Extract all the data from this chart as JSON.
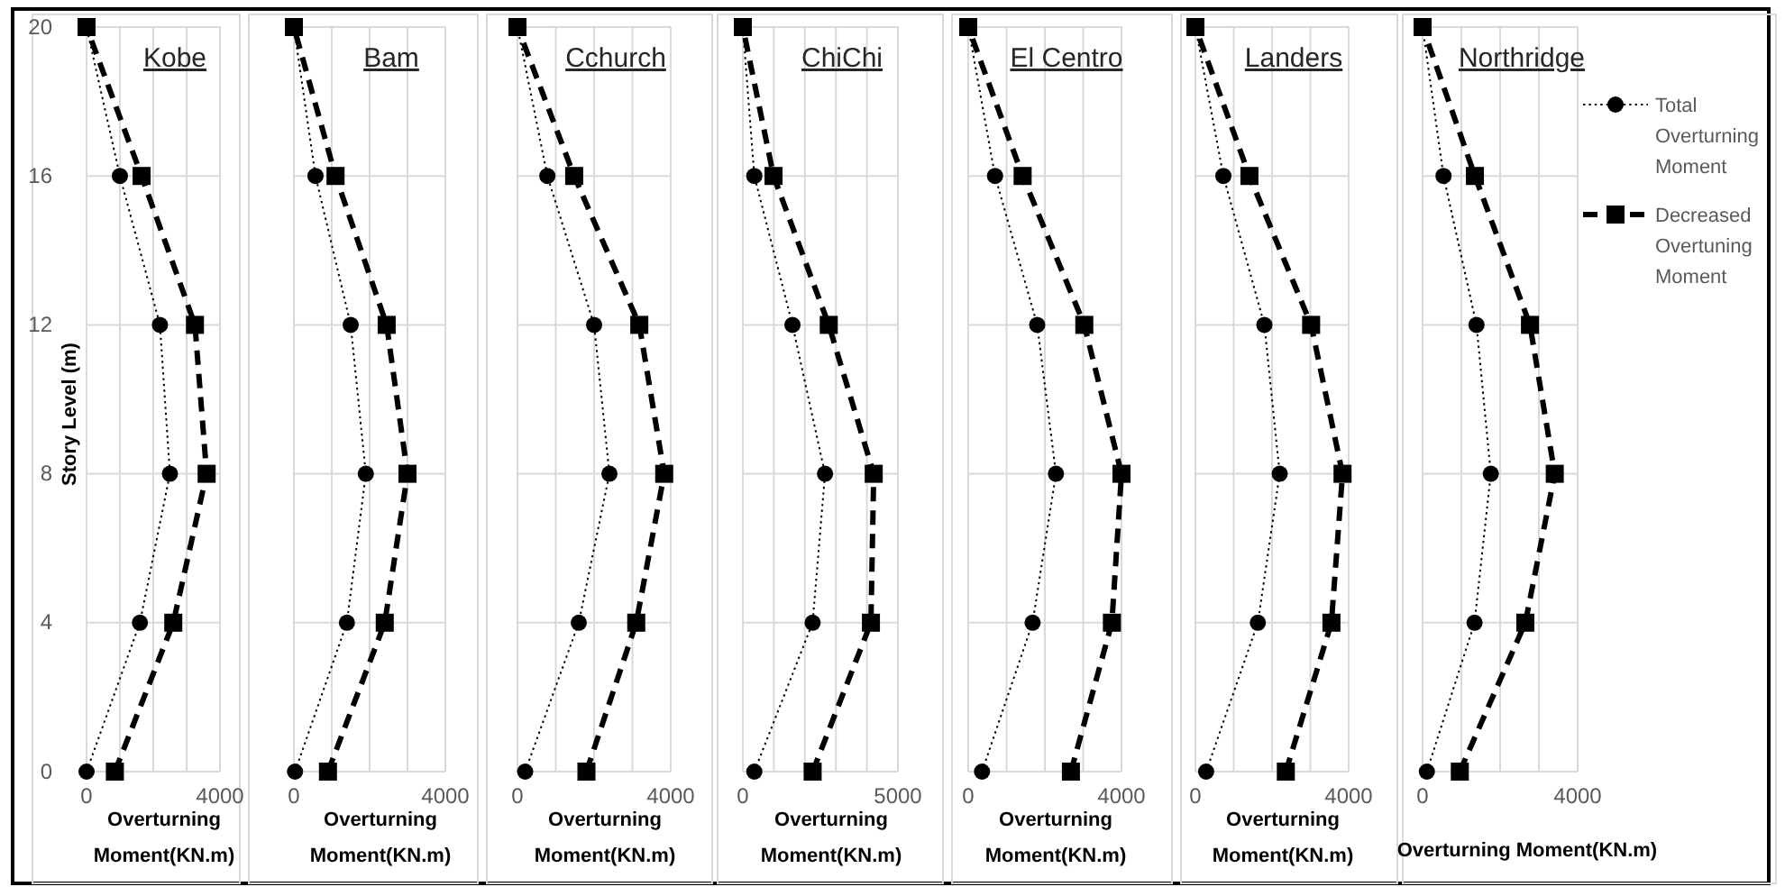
{
  "chart_data": [
    {
      "type": "line",
      "title": "Kobe",
      "xlabel": "Overturning Moment(KN.m)",
      "ylabel": "Story Level (m)",
      "xlim": [
        0,
        4000
      ],
      "xticks": [
        0,
        {
          "value": 1000,
          "label": null
        },
        {
          "value": 2000,
          "label": null
        },
        {
          "value": 3000,
          "label": null
        },
        4000
      ],
      "ylim": [
        0,
        20
      ],
      "yticks": [
        0,
        4,
        8,
        12,
        16,
        20
      ],
      "grid": true,
      "series": [
        {
          "color": "#000000",
          "marker": "circle",
          "line_style": "dotted",
          "x": [
            0,
            1600,
            2500,
            2200,
            1000,
            0
          ],
          "values": [
            0,
            4,
            8,
            12,
            16,
            20
          ]
        },
        {
          "color": "#000000",
          "marker": "square",
          "line_style": "dashed",
          "x": [
            850,
            2600,
            3600,
            3250,
            1650,
            0
          ],
          "values": [
            0,
            4,
            8,
            12,
            16,
            20
          ]
        }
      ]
    },
    {
      "type": "line",
      "title": "Bam",
      "xlabel": "Overturning Moment(KN.m)",
      "tick_labels": "x",
      "xlim": [
        0,
        4000
      ],
      "xticks": [
        0,
        {
          "value": 1000,
          "label": null
        },
        {
          "value": 2000,
          "label": null
        },
        {
          "value": 3000,
          "label": null
        },
        4000
      ],
      "ylim": [
        0,
        20
      ],
      "yticks": [
        0,
        4,
        8,
        12,
        16,
        20
      ],
      "grid": true,
      "series": [
        {
          "color": "#000000",
          "marker": "circle",
          "line_style": "dotted",
          "x": [
            30,
            1400,
            1900,
            1500,
            570,
            0
          ],
          "values": [
            0,
            4,
            8,
            12,
            16,
            20
          ]
        },
        {
          "color": "#000000",
          "marker": "square",
          "line_style": "dashed",
          "x": [
            900,
            2400,
            3000,
            2450,
            1100,
            0
          ],
          "values": [
            0,
            4,
            8,
            12,
            16,
            20
          ]
        }
      ]
    },
    {
      "type": "line",
      "title": "Cchurch",
      "xlabel": "Overturning Moment(KN.m)",
      "tick_labels": "x",
      "xlim": [
        0,
        4000
      ],
      "xticks": [
        0,
        {
          "value": 1000,
          "label": null
        },
        {
          "value": 2000,
          "label": null
        },
        {
          "value": 3000,
          "label": null
        },
        4000
      ],
      "ylim": [
        0,
        20
      ],
      "yticks": [
        0,
        4,
        8,
        12,
        16,
        20
      ],
      "grid": true,
      "series": [
        {
          "color": "#000000",
          "marker": "circle",
          "line_style": "dotted",
          "x": [
            200,
            1600,
            2400,
            2000,
            780,
            0
          ],
          "values": [
            0,
            4,
            8,
            12,
            16,
            20
          ]
        },
        {
          "color": "#000000",
          "marker": "square",
          "line_style": "dashed",
          "x": [
            1800,
            3100,
            3830,
            3180,
            1480,
            0
          ],
          "values": [
            0,
            4,
            8,
            12,
            16,
            20
          ]
        }
      ]
    },
    {
      "type": "line",
      "title": "ChiChi",
      "xlabel": "Overturning Moment(KN.m)",
      "tick_labels": "x",
      "xlim": [
        0,
        5000
      ],
      "xticks": [
        0,
        {
          "value": 1000,
          "label": null
        },
        {
          "value": 2000,
          "label": null
        },
        {
          "value": 3000,
          "label": null
        },
        {
          "value": 4000,
          "label": null
        },
        5000
      ],
      "ylim": [
        0,
        20
      ],
      "yticks": [
        0,
        4,
        8,
        12,
        16,
        20
      ],
      "grid": true,
      "series": [
        {
          "color": "#000000",
          "marker": "circle",
          "line_style": "dotted",
          "x": [
            370,
            2250,
            2650,
            1600,
            370,
            0
          ],
          "values": [
            0,
            4,
            8,
            12,
            16,
            20
          ]
        },
        {
          "color": "#000000",
          "marker": "square",
          "line_style": "dashed",
          "x": [
            2250,
            4130,
            4220,
            2770,
            990,
            0
          ],
          "values": [
            0,
            4,
            8,
            12,
            16,
            20
          ]
        }
      ]
    },
    {
      "type": "line",
      "title": "El Centro",
      "xlabel": "Overturning Moment(KN.m)",
      "tick_labels": "x",
      "xlim": [
        0,
        4000
      ],
      "xticks": [
        0,
        {
          "value": 1000,
          "label": null
        },
        {
          "value": 2000,
          "label": null
        },
        {
          "value": 3000,
          "label": null
        },
        4000
      ],
      "ylim": [
        0,
        20
      ],
      "yticks": [
        0,
        4,
        8,
        12,
        16,
        20
      ],
      "grid": true,
      "series": [
        {
          "color": "#000000",
          "marker": "circle",
          "line_style": "dotted",
          "x": [
            360,
            1680,
            2290,
            1800,
            700,
            0
          ],
          "values": [
            0,
            4,
            8,
            12,
            16,
            20
          ]
        },
        {
          "color": "#000000",
          "marker": "square",
          "line_style": "dashed",
          "x": [
            2680,
            3750,
            4000,
            3030,
            1420,
            0
          ],
          "values": [
            0,
            4,
            8,
            12,
            16,
            20
          ]
        }
      ]
    },
    {
      "type": "line",
      "title": "Landers",
      "xlabel": "Overturning Moment(KN.m)",
      "tick_labels": "x",
      "xlim": [
        0,
        4000
      ],
      "xticks": [
        0,
        {
          "value": 1000,
          "label": null
        },
        {
          "value": 2000,
          "label": null
        },
        {
          "value": 3000,
          "label": null
        },
        4000
      ],
      "ylim": [
        0,
        20
      ],
      "yticks": [
        0,
        4,
        8,
        12,
        16,
        20
      ],
      "grid": true,
      "series": [
        {
          "color": "#000000",
          "marker": "circle",
          "line_style": "dotted",
          "x": [
            280,
            1630,
            2200,
            1800,
            730,
            0
          ],
          "values": [
            0,
            4,
            8,
            12,
            16,
            20
          ]
        },
        {
          "color": "#000000",
          "marker": "square",
          "line_style": "dashed",
          "x": [
            2360,
            3550,
            3840,
            3020,
            1410,
            0
          ],
          "values": [
            0,
            4,
            8,
            12,
            16,
            20
          ]
        }
      ]
    },
    {
      "type": "line",
      "title": "Northridge",
      "xlabel": "Overturning Moment(KN.m)",
      "tick_labels": "x",
      "legend": "right",
      "xlim": [
        0,
        4000
      ],
      "xticks": [
        0,
        {
          "value": 1000,
          "label": null
        },
        {
          "value": 2000,
          "label": null
        },
        {
          "value": 3000,
          "label": null
        },
        4000
      ],
      "ylim": [
        0,
        20
      ],
      "yticks": [
        0,
        4,
        8,
        12,
        16,
        20
      ],
      "grid": true,
      "series": [
        {
          "name": "Total Overturning Moment",
          "color": "#000000",
          "marker": "circle",
          "line_style": "dotted",
          "x": [
            110,
            1340,
            1760,
            1390,
            540,
            0
          ],
          "values": [
            0,
            4,
            8,
            12,
            16,
            20
          ]
        },
        {
          "name": "Decreased Overtuning Moment",
          "color": "#000000",
          "marker": "square",
          "line_style": "dashed",
          "x": [
            960,
            2650,
            3410,
            2770,
            1350,
            0
          ],
          "values": [
            0,
            4,
            8,
            12,
            16,
            20
          ]
        }
      ]
    }
  ]
}
